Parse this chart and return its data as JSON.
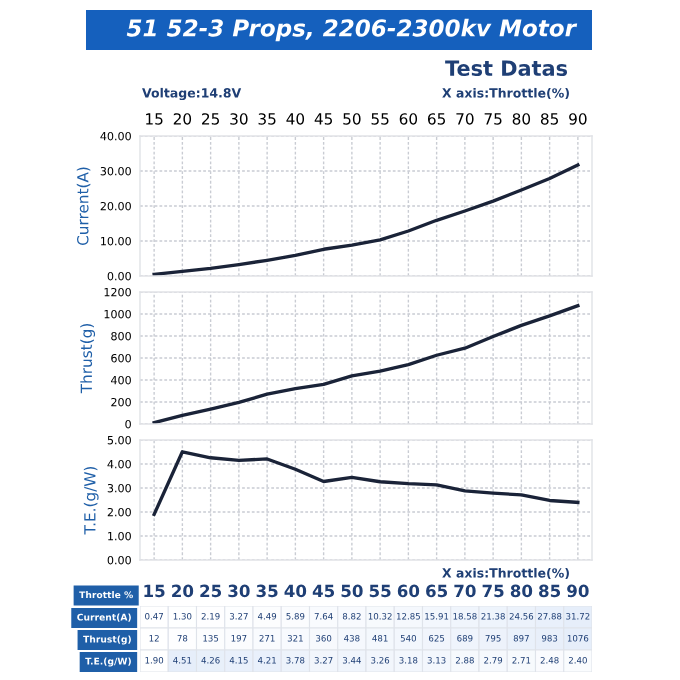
{
  "chart_data": [
    {
      "type": "line",
      "title": "51 52-3 Props, 2206-2300kv Motor",
      "subtitle": "Test Datas",
      "ylabel": "Current(A)",
      "annotations": [
        "Voltage:14.8V",
        "X axis:Throttle(%)"
      ],
      "x": [
        15,
        20,
        25,
        30,
        35,
        40,
        45,
        50,
        55,
        60,
        65,
        70,
        75,
        80,
        85,
        90
      ],
      "series": [
        {
          "color": "#1a2338",
          "values": [
            0.47,
            1.3,
            2.19,
            3.27,
            4.49,
            5.89,
            7.64,
            8.82,
            10.32,
            12.85,
            15.91,
            18.58,
            21.38,
            24.56,
            27.88,
            31.72
          ]
        }
      ],
      "xlim": [
        12.5,
        92.5
      ],
      "xticks": [
        15,
        20,
        25,
        30,
        35,
        40,
        45,
        50,
        55,
        60,
        65,
        70,
        75,
        80,
        85,
        90
      ],
      "ylim": [
        0,
        40
      ],
      "yticks": [
        {
          "value": 0,
          "label": "0.00"
        },
        {
          "value": 10,
          "label": "10.00"
        },
        {
          "value": 20,
          "label": "20.00"
        },
        {
          "value": 30,
          "label": "30.00"
        },
        {
          "value": 40,
          "label": "40.00"
        }
      ],
      "grid": true,
      "marker": "none",
      "line_style": "solid"
    },
    {
      "type": "line",
      "ylabel": "Thrust(g)",
      "x": [
        15,
        20,
        25,
        30,
        35,
        40,
        45,
        50,
        55,
        60,
        65,
        70,
        75,
        80,
        85,
        90
      ],
      "series": [
        {
          "color": "#1a2338",
          "values": [
            12,
            78,
            135,
            197,
            271,
            321,
            360,
            438,
            481,
            540,
            625,
            689,
            795,
            897,
            983,
            1076
          ]
        }
      ],
      "xlim": [
        12.5,
        92.5
      ],
      "ylim": [
        0,
        1200
      ],
      "yticks": [
        0,
        200,
        400,
        600,
        800,
        1000,
        1200
      ],
      "tick_labels": "y",
      "grid": true,
      "marker": "none",
      "line_style": "solid"
    },
    {
      "type": "line",
      "ylabel": "T.E.(g/W)",
      "annotations": [
        "X axis:Throttle(%)"
      ],
      "x": [
        15,
        20,
        25,
        30,
        35,
        40,
        45,
        50,
        55,
        60,
        65,
        70,
        75,
        80,
        85,
        90
      ],
      "series": [
        {
          "color": "#1a2338",
          "values": [
            1.9,
            4.51,
            4.26,
            4.15,
            4.21,
            3.78,
            3.27,
            3.44,
            3.26,
            3.18,
            3.13,
            2.88,
            2.79,
            2.71,
            2.48,
            2.4
          ]
        }
      ],
      "xlim": [
        12.5,
        92.5
      ],
      "ylim": [
        0,
        5
      ],
      "yticks": [
        {
          "value": 0,
          "label": "0.00"
        },
        {
          "value": 1,
          "label": "1.00"
        },
        {
          "value": 2,
          "label": "2.00"
        },
        {
          "value": 3,
          "label": "3.00"
        },
        {
          "value": 4,
          "label": "4.00"
        },
        {
          "value": 5,
          "label": "5.00"
        }
      ],
      "tick_labels": "y",
      "grid": true,
      "marker": "none",
      "line_style": "solid"
    },
    {
      "type": "heatmap",
      "xlabel": "Throttle %",
      "categories": [
        "15",
        "20",
        "25",
        "30",
        "35",
        "40",
        "45",
        "50",
        "55",
        "60",
        "65",
        "70",
        "75",
        "80",
        "85",
        "90"
      ],
      "y_categories": [
        "Current(A)",
        "Thrust(g)",
        "T.E.(g/W)"
      ],
      "cells": [
        [
          0.47,
          1.3,
          2.19,
          3.27,
          4.49,
          5.89,
          7.64,
          8.82,
          10.32,
          12.85,
          15.91,
          18.58,
          21.38,
          24.56,
          27.88,
          31.72
        ],
        [
          12,
          78,
          135,
          197,
          271,
          321,
          360,
          438,
          481,
          540,
          625,
          689,
          795,
          897,
          983,
          1076
        ],
        [
          1.9,
          4.51,
          4.26,
          4.15,
          4.21,
          3.78,
          3.27,
          3.44,
          3.26,
          3.18,
          3.13,
          2.88,
          2.79,
          2.71,
          2.48,
          2.4
        ]
      ],
      "cell_labels": [
        [
          "0.47",
          "1.30",
          "2.19",
          "3.27",
          "4.49",
          "5.89",
          "7.64",
          "8.82",
          "10.32",
          "12.85",
          "15.91",
          "18.58",
          "21.38",
          "24.56",
          "27.88",
          "31.72"
        ],
        [
          "12",
          "78",
          "135",
          "197",
          "271",
          "321",
          "360",
          "438",
          "481",
          "540",
          "625",
          "689",
          "795",
          "897",
          "983",
          "1076"
        ],
        [
          "1.90",
          "4.51",
          "4.26",
          "4.15",
          "4.21",
          "3.78",
          "3.27",
          "3.44",
          "3.26",
          "3.18",
          "3.13",
          "2.88",
          "2.79",
          "2.71",
          "2.48",
          "2.40"
        ]
      ]
    }
  ]
}
